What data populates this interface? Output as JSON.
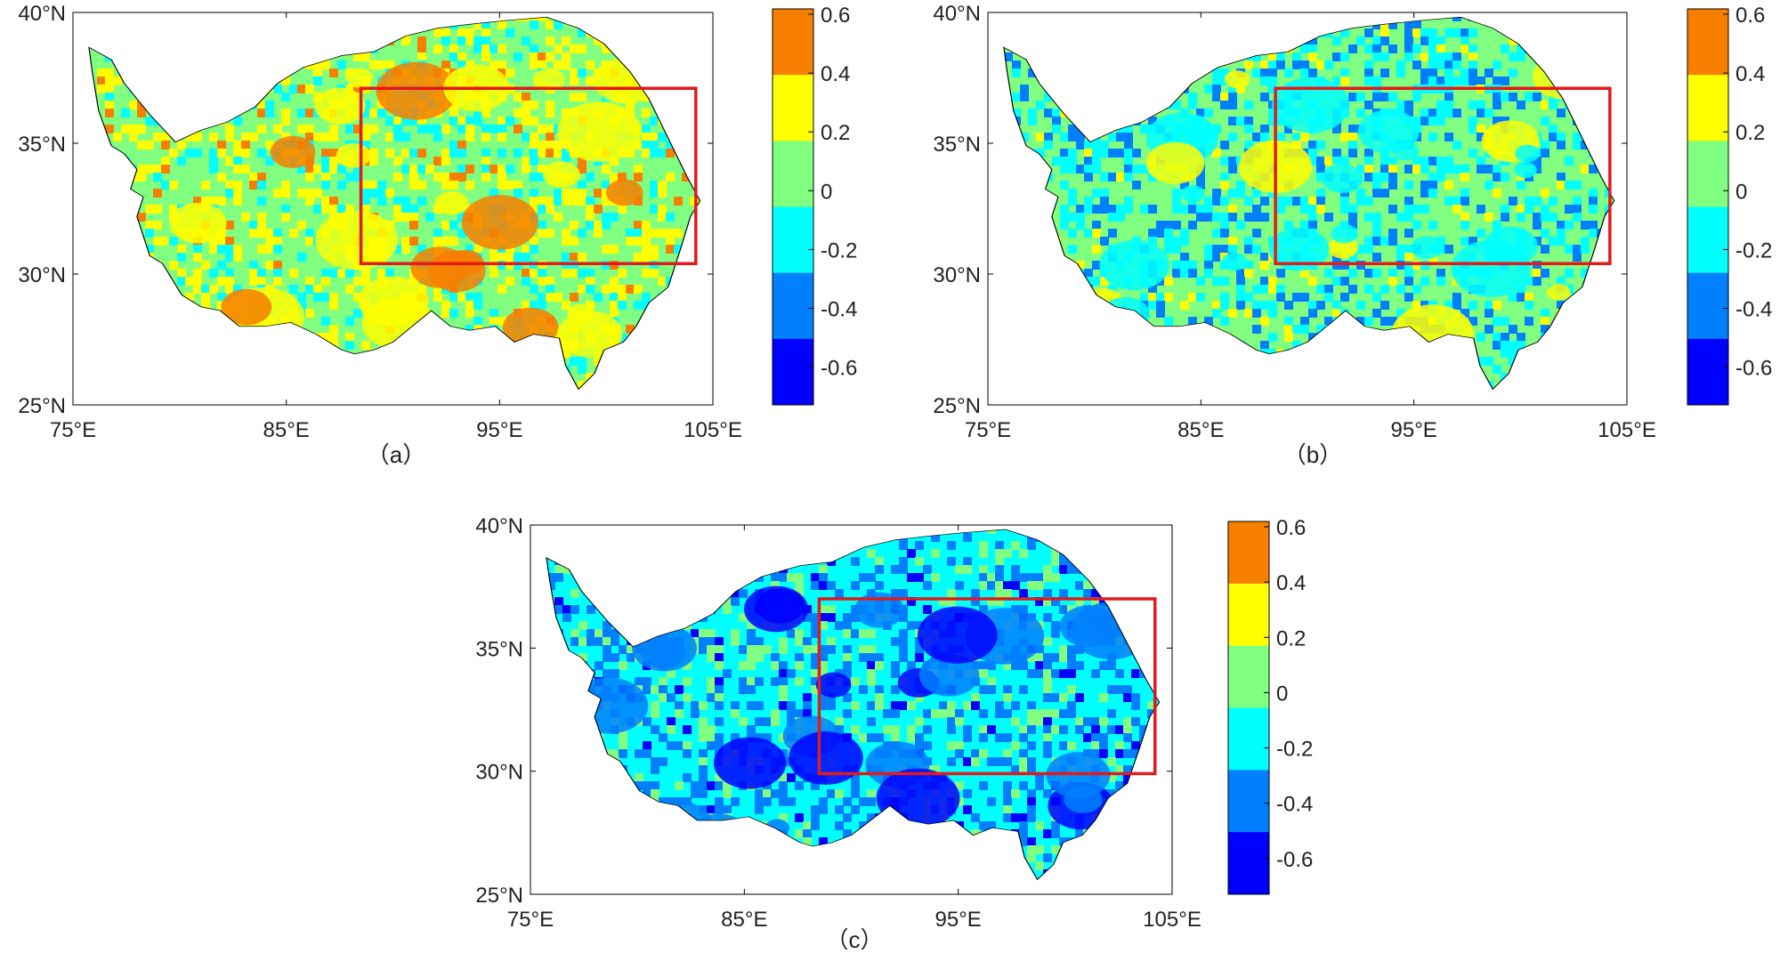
{
  "panels": [
    {
      "id": "a",
      "caption": "（a）",
      "lon_ticks": [
        "75°E",
        "85°E",
        "95°E",
        "105°E"
      ],
      "lat_ticks": [
        "40°N",
        "35°N",
        "30°N",
        "25°N"
      ],
      "extent": {
        "lon": [
          75,
          105
        ],
        "lat": [
          25,
          40
        ]
      },
      "study_box": {
        "lon": [
          88.5,
          104.2
        ],
        "lat": [
          30.4,
          37.1
        ]
      },
      "dominant_levels": [
        0.1,
        0.3,
        -0.1,
        0.5
      ],
      "colorbar_ticks": [
        "0.6",
        "0.4",
        "0.2",
        "0",
        "-0.2",
        "-0.4",
        "-0.6"
      ]
    },
    {
      "id": "b",
      "caption": "（b）",
      "lon_ticks": [
        "75°E",
        "85°E",
        "95°E",
        "105°E"
      ],
      "lat_ticks": [
        "40°N",
        "35°N",
        "30°N",
        "25°N"
      ],
      "extent": {
        "lon": [
          75,
          105
        ],
        "lat": [
          25,
          40
        ]
      },
      "study_box": {
        "lon": [
          88.5,
          104.2
        ],
        "lat": [
          30.4,
          37.1
        ]
      },
      "dominant_levels": [
        0.1,
        -0.1,
        -0.3,
        0.3
      ],
      "colorbar_ticks": [
        "0.6",
        "0.4",
        "0.2",
        "0",
        "-0.2",
        "-0.4",
        "-0.6"
      ]
    },
    {
      "id": "c",
      "caption": "（c）",
      "lon_ticks": [
        "75°E",
        "85°E",
        "95°E",
        "105°E"
      ],
      "lat_ticks": [
        "40°N",
        "35°N",
        "30°N",
        "25°N"
      ],
      "extent": {
        "lon": [
          75,
          105
        ],
        "lat": [
          25,
          40
        ]
      },
      "study_box": {
        "lon": [
          88.5,
          104.2
        ],
        "lat": [
          29.9,
          37.0
        ]
      },
      "dominant_levels": [
        -0.1,
        -0.3,
        0.1,
        -0.5
      ],
      "colorbar_ticks": [
        "0.6",
        "0.4",
        "0.2",
        "0",
        "-0.2",
        "-0.4",
        "-0.6"
      ]
    }
  ],
  "colorbar_colors": [
    "#f77f00",
    "#ffff00",
    "#80ff80",
    "#00ffff",
    "#0080ff",
    "#0000ff"
  ],
  "colors": {
    "study_box": "#e31a1c",
    "outline": "#000000"
  }
}
